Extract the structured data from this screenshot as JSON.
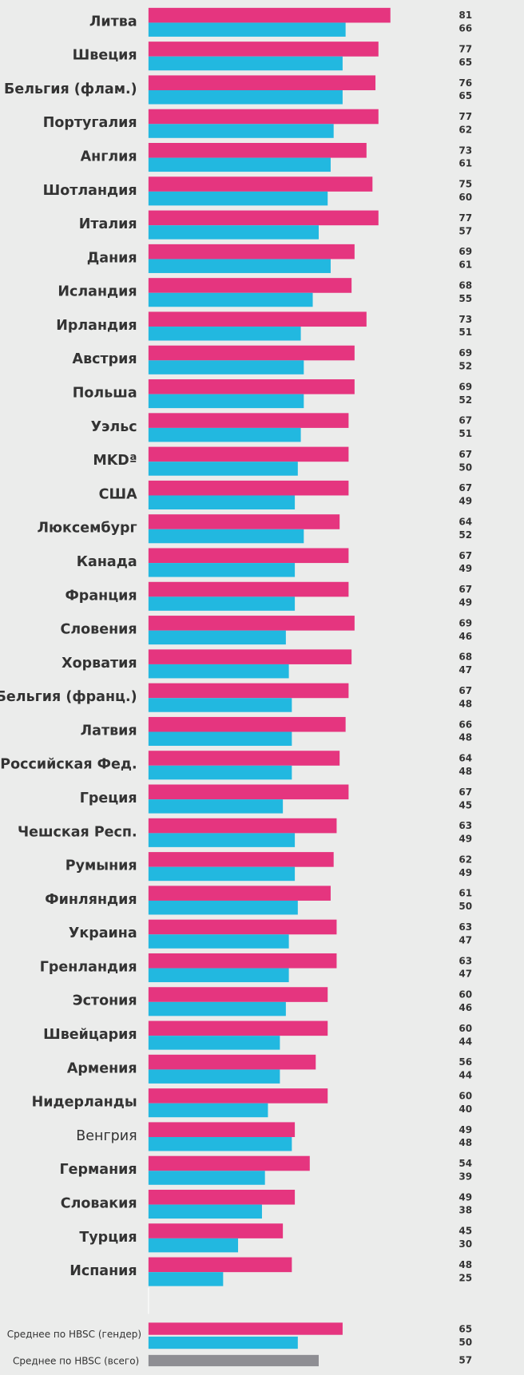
{
  "chart_data": {
    "type": "bar",
    "orientation": "horizontal",
    "categories": [
      "Литва",
      "Швеция",
      "Бельгия (флам.)",
      "Португалия",
      "Англия",
      "Шотландия",
      "Италия",
      "Дания",
      "Исландия",
      "Ирландия",
      "Австрия",
      "Польша",
      "Уэльс",
      "MKDª",
      "США",
      "Люксембург",
      "Канада",
      "Франция",
      "Словения",
      "Хорватия",
      "Бельгия (франц.)",
      "Латвия",
      "Российская Фед.",
      "Греция",
      "Чешская Респ.",
      "Румыния",
      "Финляндия",
      "Украина",
      "Гренландия",
      "Эстония",
      "Швейцария",
      "Армения",
      "Нидерланды",
      "Венгрия",
      "Германия",
      "Словакия",
      "Турция",
      "Испания"
    ],
    "plain_label_indices": [
      33
    ],
    "series": [
      {
        "color": "#e5357f",
        "values": [
          81,
          77,
          76,
          77,
          73,
          75,
          77,
          69,
          68,
          73,
          69,
          69,
          67,
          67,
          67,
          64,
          67,
          67,
          69,
          68,
          67,
          66,
          64,
          67,
          63,
          62,
          61,
          63,
          63,
          60,
          60,
          56,
          60,
          49,
          54,
          49,
          45,
          48
        ]
      },
      {
        "color": "#22b8e0",
        "values": [
          66,
          65,
          65,
          62,
          61,
          60,
          57,
          61,
          55,
          51,
          52,
          52,
          51,
          50,
          49,
          52,
          49,
          49,
          46,
          47,
          48,
          48,
          48,
          45,
          49,
          49,
          50,
          47,
          47,
          46,
          44,
          44,
          40,
          48,
          39,
          38,
          30,
          25
        ]
      }
    ],
    "xlim": [
      0,
      100
    ],
    "average_gender": {
      "label": "Среднее по HBSC (гендер)",
      "values": [
        65,
        50
      ]
    },
    "average_total": {
      "label": "Среднее по HBSC (всего)",
      "value": 57,
      "color": "#8e8e93"
    }
  }
}
